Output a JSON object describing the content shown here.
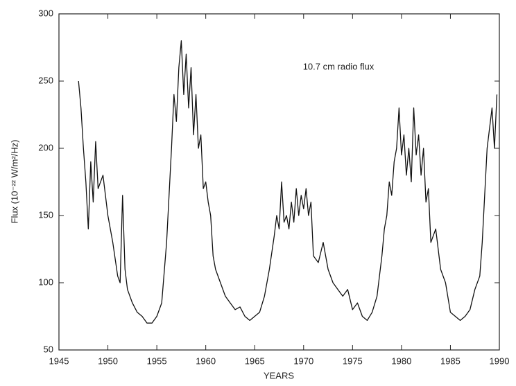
{
  "chart_data": {
    "type": "line",
    "annotation": "10.7 cm radio flux",
    "xlabel": "YEARS",
    "ylabel": "Flux (10⁻²² W/m²/Hz)",
    "xlim": [
      1945,
      1990
    ],
    "xticks": [
      1945,
      1950,
      1955,
      1960,
      1965,
      1970,
      1975,
      1980,
      1985,
      1990
    ],
    "ylim": [
      50,
      300
    ],
    "yticks": [
      50,
      100,
      150,
      200,
      250,
      300
    ],
    "color": "#111111",
    "x": [
      1947,
      1947.25,
      1947.5,
      1947.75,
      1948,
      1948.25,
      1948.5,
      1948.75,
      1949,
      1949.5,
      1950,
      1950.5,
      1951,
      1951.25,
      1951.5,
      1951.75,
      1952,
      1952.5,
      1953,
      1953.5,
      1954,
      1954.5,
      1955,
      1955.5,
      1956,
      1956.25,
      1956.5,
      1956.75,
      1957,
      1957.25,
      1957.5,
      1957.75,
      1958,
      1958.25,
      1958.5,
      1958.75,
      1959,
      1959.25,
      1959.5,
      1959.75,
      1960,
      1960.25,
      1960.5,
      1960.75,
      1961,
      1961.5,
      1962,
      1962.5,
      1963,
      1963.5,
      1964,
      1964.5,
      1965,
      1965.5,
      1966,
      1966.5,
      1967,
      1967.25,
      1967.5,
      1967.75,
      1968,
      1968.25,
      1968.5,
      1968.75,
      1969,
      1969.25,
      1969.5,
      1969.75,
      1970,
      1970.25,
      1970.5,
      1970.75,
      1971,
      1971.5,
      1972,
      1972.5,
      1973,
      1973.5,
      1974,
      1974.5,
      1975,
      1975.5,
      1976,
      1976.5,
      1977,
      1977.5,
      1978,
      1978.25,
      1978.5,
      1978.75,
      1979,
      1979.25,
      1979.5,
      1979.75,
      1980,
      1980.25,
      1980.5,
      1980.75,
      1981,
      1981.25,
      1981.5,
      1981.75,
      1982,
      1982.25,
      1982.5,
      1982.75,
      1983,
      1983.5,
      1984,
      1984.5,
      1985,
      1985.5,
      1986,
      1986.5,
      1987,
      1987.5,
      1988,
      1988.25,
      1988.5,
      1988.75,
      1989,
      1989.25,
      1989.5,
      1989.75
    ],
    "values": [
      250,
      230,
      200,
      175,
      140,
      190,
      160,
      205,
      170,
      180,
      150,
      130,
      105,
      100,
      165,
      110,
      95,
      85,
      78,
      75,
      70,
      70,
      75,
      85,
      130,
      165,
      200,
      240,
      220,
      260,
      280,
      240,
      270,
      230,
      260,
      210,
      240,
      200,
      210,
      170,
      175,
      160,
      150,
      120,
      110,
      100,
      90,
      85,
      80,
      82,
      75,
      72,
      75,
      78,
      90,
      110,
      135,
      150,
      140,
      175,
      145,
      150,
      140,
      160,
      145,
      170,
      150,
      165,
      155,
      170,
      150,
      160,
      120,
      115,
      130,
      110,
      100,
      95,
      90,
      95,
      80,
      85,
      75,
      72,
      78,
      90,
      120,
      140,
      150,
      175,
      165,
      190,
      200,
      230,
      195,
      210,
      180,
      200,
      175,
      230,
      195,
      210,
      180,
      200,
      160,
      170,
      130,
      140,
      110,
      100,
      78,
      75,
      72,
      75,
      80,
      95,
      105,
      130,
      165,
      200,
      215,
      230,
      200,
      240
    ]
  }
}
